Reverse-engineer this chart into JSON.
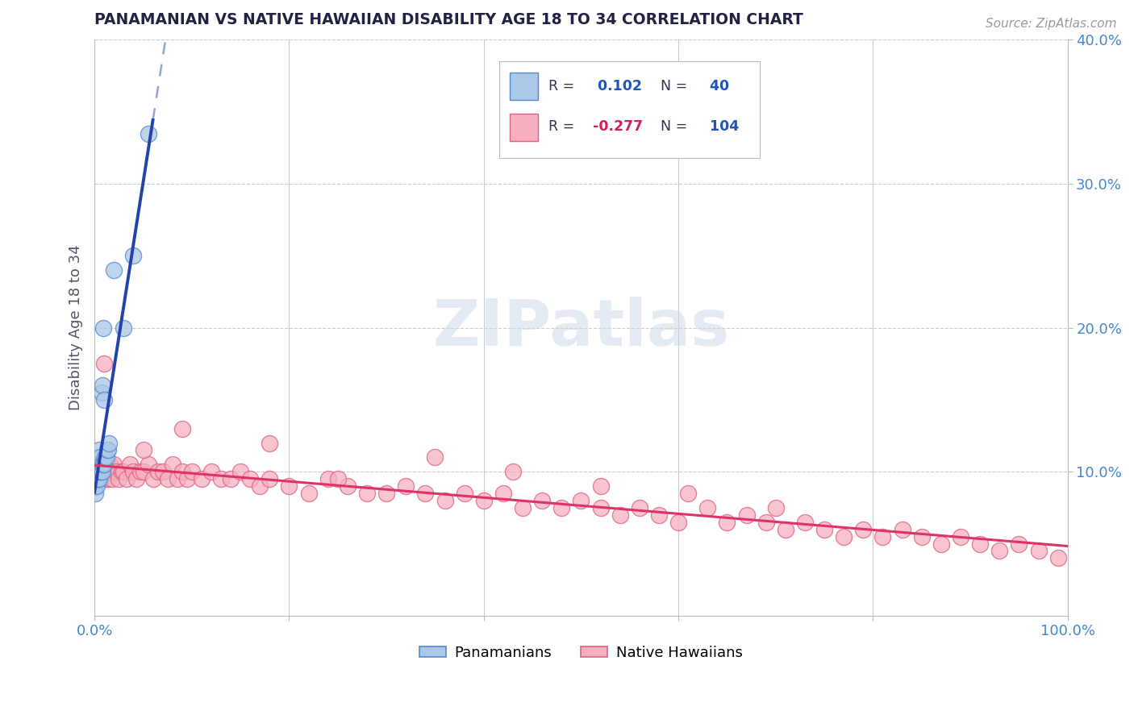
{
  "title": "PANAMANIAN VS NATIVE HAWAIIAN DISABILITY AGE 18 TO 34 CORRELATION CHART",
  "source": "Source: ZipAtlas.com",
  "ylabel": "Disability Age 18 to 34",
  "xlim": [
    0.0,
    1.0
  ],
  "ylim": [
    0.0,
    0.4
  ],
  "y_tick_labels": [
    "10.0%",
    "20.0%",
    "30.0%",
    "40.0%"
  ],
  "y_tick_positions": [
    0.1,
    0.2,
    0.3,
    0.4
  ],
  "watermark": "ZIPatlas",
  "panamanian_face": "#aac8e8",
  "panamanian_edge": "#5588cc",
  "native_hawaiian_face": "#f5b0c0",
  "native_hawaiian_edge": "#e06080",
  "panamanian_line_color": "#2244aa",
  "panamanian_dash_color": "#88aad8",
  "native_hawaiian_line_color": "#dd3366",
  "R_panamanian": 0.102,
  "N_panamanian": 40,
  "R_native_hawaiian": -0.277,
  "N_native_hawaiian": 104,
  "legend_R_pan_color": "#2255bb",
  "legend_R_haw_color": "#cc2255",
  "legend_N_color": "#2255bb",
  "background_color": "#ffffff",
  "grid_color": "#cccccc",
  "title_color": "#222244",
  "axis_label_color": "#555566",
  "tick_color": "#4488cc",
  "pan_x": [
    0.001,
    0.001,
    0.001,
    0.001,
    0.001,
    0.002,
    0.002,
    0.002,
    0.002,
    0.003,
    0.003,
    0.003,
    0.003,
    0.004,
    0.004,
    0.004,
    0.005,
    0.005,
    0.005,
    0.006,
    0.006,
    0.006,
    0.007,
    0.007,
    0.007,
    0.008,
    0.008,
    0.009,
    0.009,
    0.01,
    0.01,
    0.011,
    0.012,
    0.013,
    0.014,
    0.015,
    0.02,
    0.03,
    0.04,
    0.055
  ],
  "pan_y": [
    0.085,
    0.09,
    0.095,
    0.1,
    0.1,
    0.09,
    0.095,
    0.1,
    0.105,
    0.095,
    0.1,
    0.1,
    0.105,
    0.095,
    0.1,
    0.105,
    0.095,
    0.1,
    0.115,
    0.1,
    0.105,
    0.11,
    0.1,
    0.105,
    0.155,
    0.1,
    0.16,
    0.105,
    0.2,
    0.105,
    0.15,
    0.11,
    0.11,
    0.115,
    0.115,
    0.12,
    0.24,
    0.2,
    0.25,
    0.335
  ],
  "haw_x": [
    0.001,
    0.001,
    0.001,
    0.002,
    0.002,
    0.003,
    0.003,
    0.004,
    0.004,
    0.005,
    0.005,
    0.006,
    0.006,
    0.007,
    0.008,
    0.008,
    0.009,
    0.01,
    0.01,
    0.011,
    0.012,
    0.013,
    0.014,
    0.015,
    0.016,
    0.018,
    0.02,
    0.022,
    0.025,
    0.028,
    0.03,
    0.033,
    0.036,
    0.04,
    0.043,
    0.047,
    0.05,
    0.055,
    0.06,
    0.065,
    0.07,
    0.075,
    0.08,
    0.085,
    0.09,
    0.095,
    0.1,
    0.11,
    0.12,
    0.13,
    0.14,
    0.15,
    0.16,
    0.17,
    0.18,
    0.2,
    0.22,
    0.24,
    0.26,
    0.28,
    0.3,
    0.32,
    0.34,
    0.36,
    0.38,
    0.4,
    0.42,
    0.44,
    0.46,
    0.48,
    0.5,
    0.52,
    0.54,
    0.56,
    0.58,
    0.6,
    0.63,
    0.65,
    0.67,
    0.69,
    0.71,
    0.73,
    0.75,
    0.77,
    0.79,
    0.81,
    0.83,
    0.85,
    0.87,
    0.89,
    0.91,
    0.93,
    0.95,
    0.97,
    0.99,
    0.05,
    0.09,
    0.18,
    0.25,
    0.35,
    0.43,
    0.52,
    0.61,
    0.7
  ],
  "haw_y": [
    0.095,
    0.1,
    0.105,
    0.095,
    0.1,
    0.1,
    0.105,
    0.095,
    0.1,
    0.1,
    0.105,
    0.095,
    0.1,
    0.1,
    0.105,
    0.095,
    0.1,
    0.1,
    0.175,
    0.095,
    0.1,
    0.105,
    0.095,
    0.1,
    0.105,
    0.095,
    0.105,
    0.1,
    0.095,
    0.1,
    0.1,
    0.095,
    0.105,
    0.1,
    0.095,
    0.1,
    0.1,
    0.105,
    0.095,
    0.1,
    0.1,
    0.095,
    0.105,
    0.095,
    0.1,
    0.095,
    0.1,
    0.095,
    0.1,
    0.095,
    0.095,
    0.1,
    0.095,
    0.09,
    0.095,
    0.09,
    0.085,
    0.095,
    0.09,
    0.085,
    0.085,
    0.09,
    0.085,
    0.08,
    0.085,
    0.08,
    0.085,
    0.075,
    0.08,
    0.075,
    0.08,
    0.075,
    0.07,
    0.075,
    0.07,
    0.065,
    0.075,
    0.065,
    0.07,
    0.065,
    0.06,
    0.065,
    0.06,
    0.055,
    0.06,
    0.055,
    0.06,
    0.055,
    0.05,
    0.055,
    0.05,
    0.045,
    0.05,
    0.045,
    0.04,
    0.115,
    0.13,
    0.12,
    0.095,
    0.11,
    0.1,
    0.09,
    0.085,
    0.075
  ]
}
